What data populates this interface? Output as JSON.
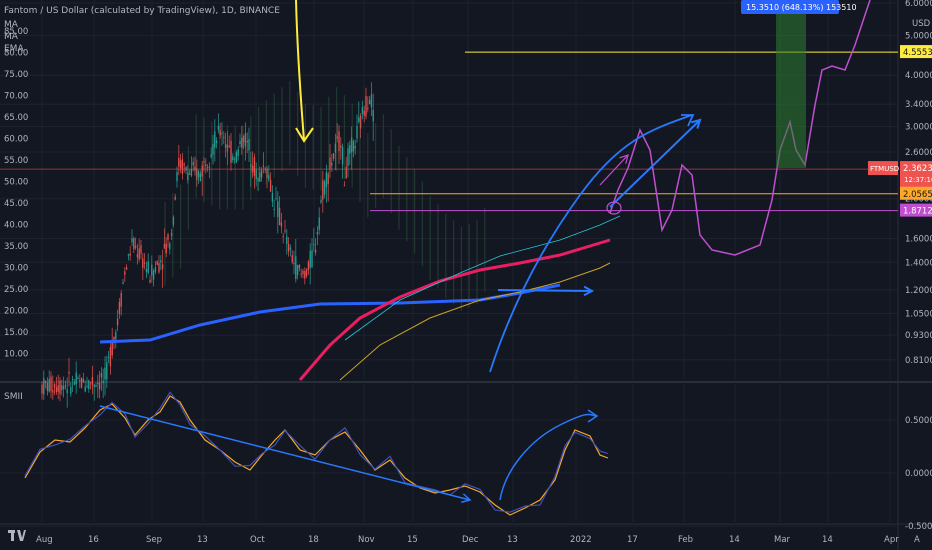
{
  "header": {
    "symbol_line": "Fantom / US Dollar (calculated by TradingView), 1D, BINANCE",
    "ind1": "MA",
    "ind2": "MA",
    "ind3": "EMA"
  },
  "osc_label": "SMII",
  "colors": {
    "bg": "#131722",
    "grid": "#1e222d",
    "up": "#26a69a",
    "down": "#ef5350",
    "yellow": "#ffeb3b",
    "blue": "#2962ff",
    "pink": "#e91e63",
    "magenta": "#c04fd0",
    "orange_line": "#ffa726"
  },
  "chart_data": [
    {
      "type": "candlestick",
      "title": "Fantom / US Dollar (calculated by TradingView), 1D, BINANCE",
      "currency": "USD",
      "y_scale": "log",
      "ylim": [
        0.74,
        6.0
      ],
      "left_axis_ticks": [
        "85.00",
        "80.00",
        "75.00",
        "70.00",
        "65.00",
        "60.00",
        "55.00",
        "50.00",
        "45.00",
        "40.00",
        "35.00",
        "30.00",
        "25.00",
        "20.00",
        "15.00",
        "10.00"
      ],
      "right_axis_ticks": [
        "6.0000",
        "5.0000",
        "4.0000",
        "3.4000",
        "3.0000",
        "2.6000",
        "2.0000",
        "1.6000",
        "1.4000",
        "1.2000",
        "1.0500",
        "0.9300",
        "0.8100"
      ],
      "x_ticks": [
        "Aug",
        "16",
        "Sep",
        "13",
        "Oct",
        "18",
        "Nov",
        "15",
        "Dec",
        "13",
        "2022",
        "17",
        "Feb",
        "14",
        "Mar",
        "14",
        "Apr"
      ],
      "price_labels": [
        {
          "value": "4.5553",
          "price": 4.5553,
          "color": "#ffeb3b",
          "text_color": "#131722"
        },
        {
          "value": "2.3623",
          "price": 2.3623,
          "color": "#ef5350",
          "text_color": "#ffffff",
          "tag": "FTMUSD",
          "countdown": "12:37:10"
        },
        {
          "value": "2.0565",
          "price": 2.0565,
          "color": "#ffa726",
          "text_color": "#131722"
        },
        {
          "value": "1.8712",
          "price": 1.8712,
          "color": "#c04fd0",
          "text_color": "#ffffff"
        }
      ],
      "measure_label": "15.3510 (648.13%) 153510",
      "horizontal_lines": [
        {
          "price": 4.5553,
          "color": "#ffeb3b"
        },
        {
          "price": 2.0565,
          "color": "#ffa726"
        },
        {
          "price": 1.8712,
          "color": "#c04fd0"
        },
        {
          "price": 2.3623,
          "color": "#ef5350"
        }
      ]
    },
    {
      "type": "line",
      "title": "SMII",
      "ylim": [
        -0.55,
        0.8
      ],
      "y_ticks": [
        "0.5000",
        "0.0000",
        "-0.5000"
      ]
    }
  ]
}
